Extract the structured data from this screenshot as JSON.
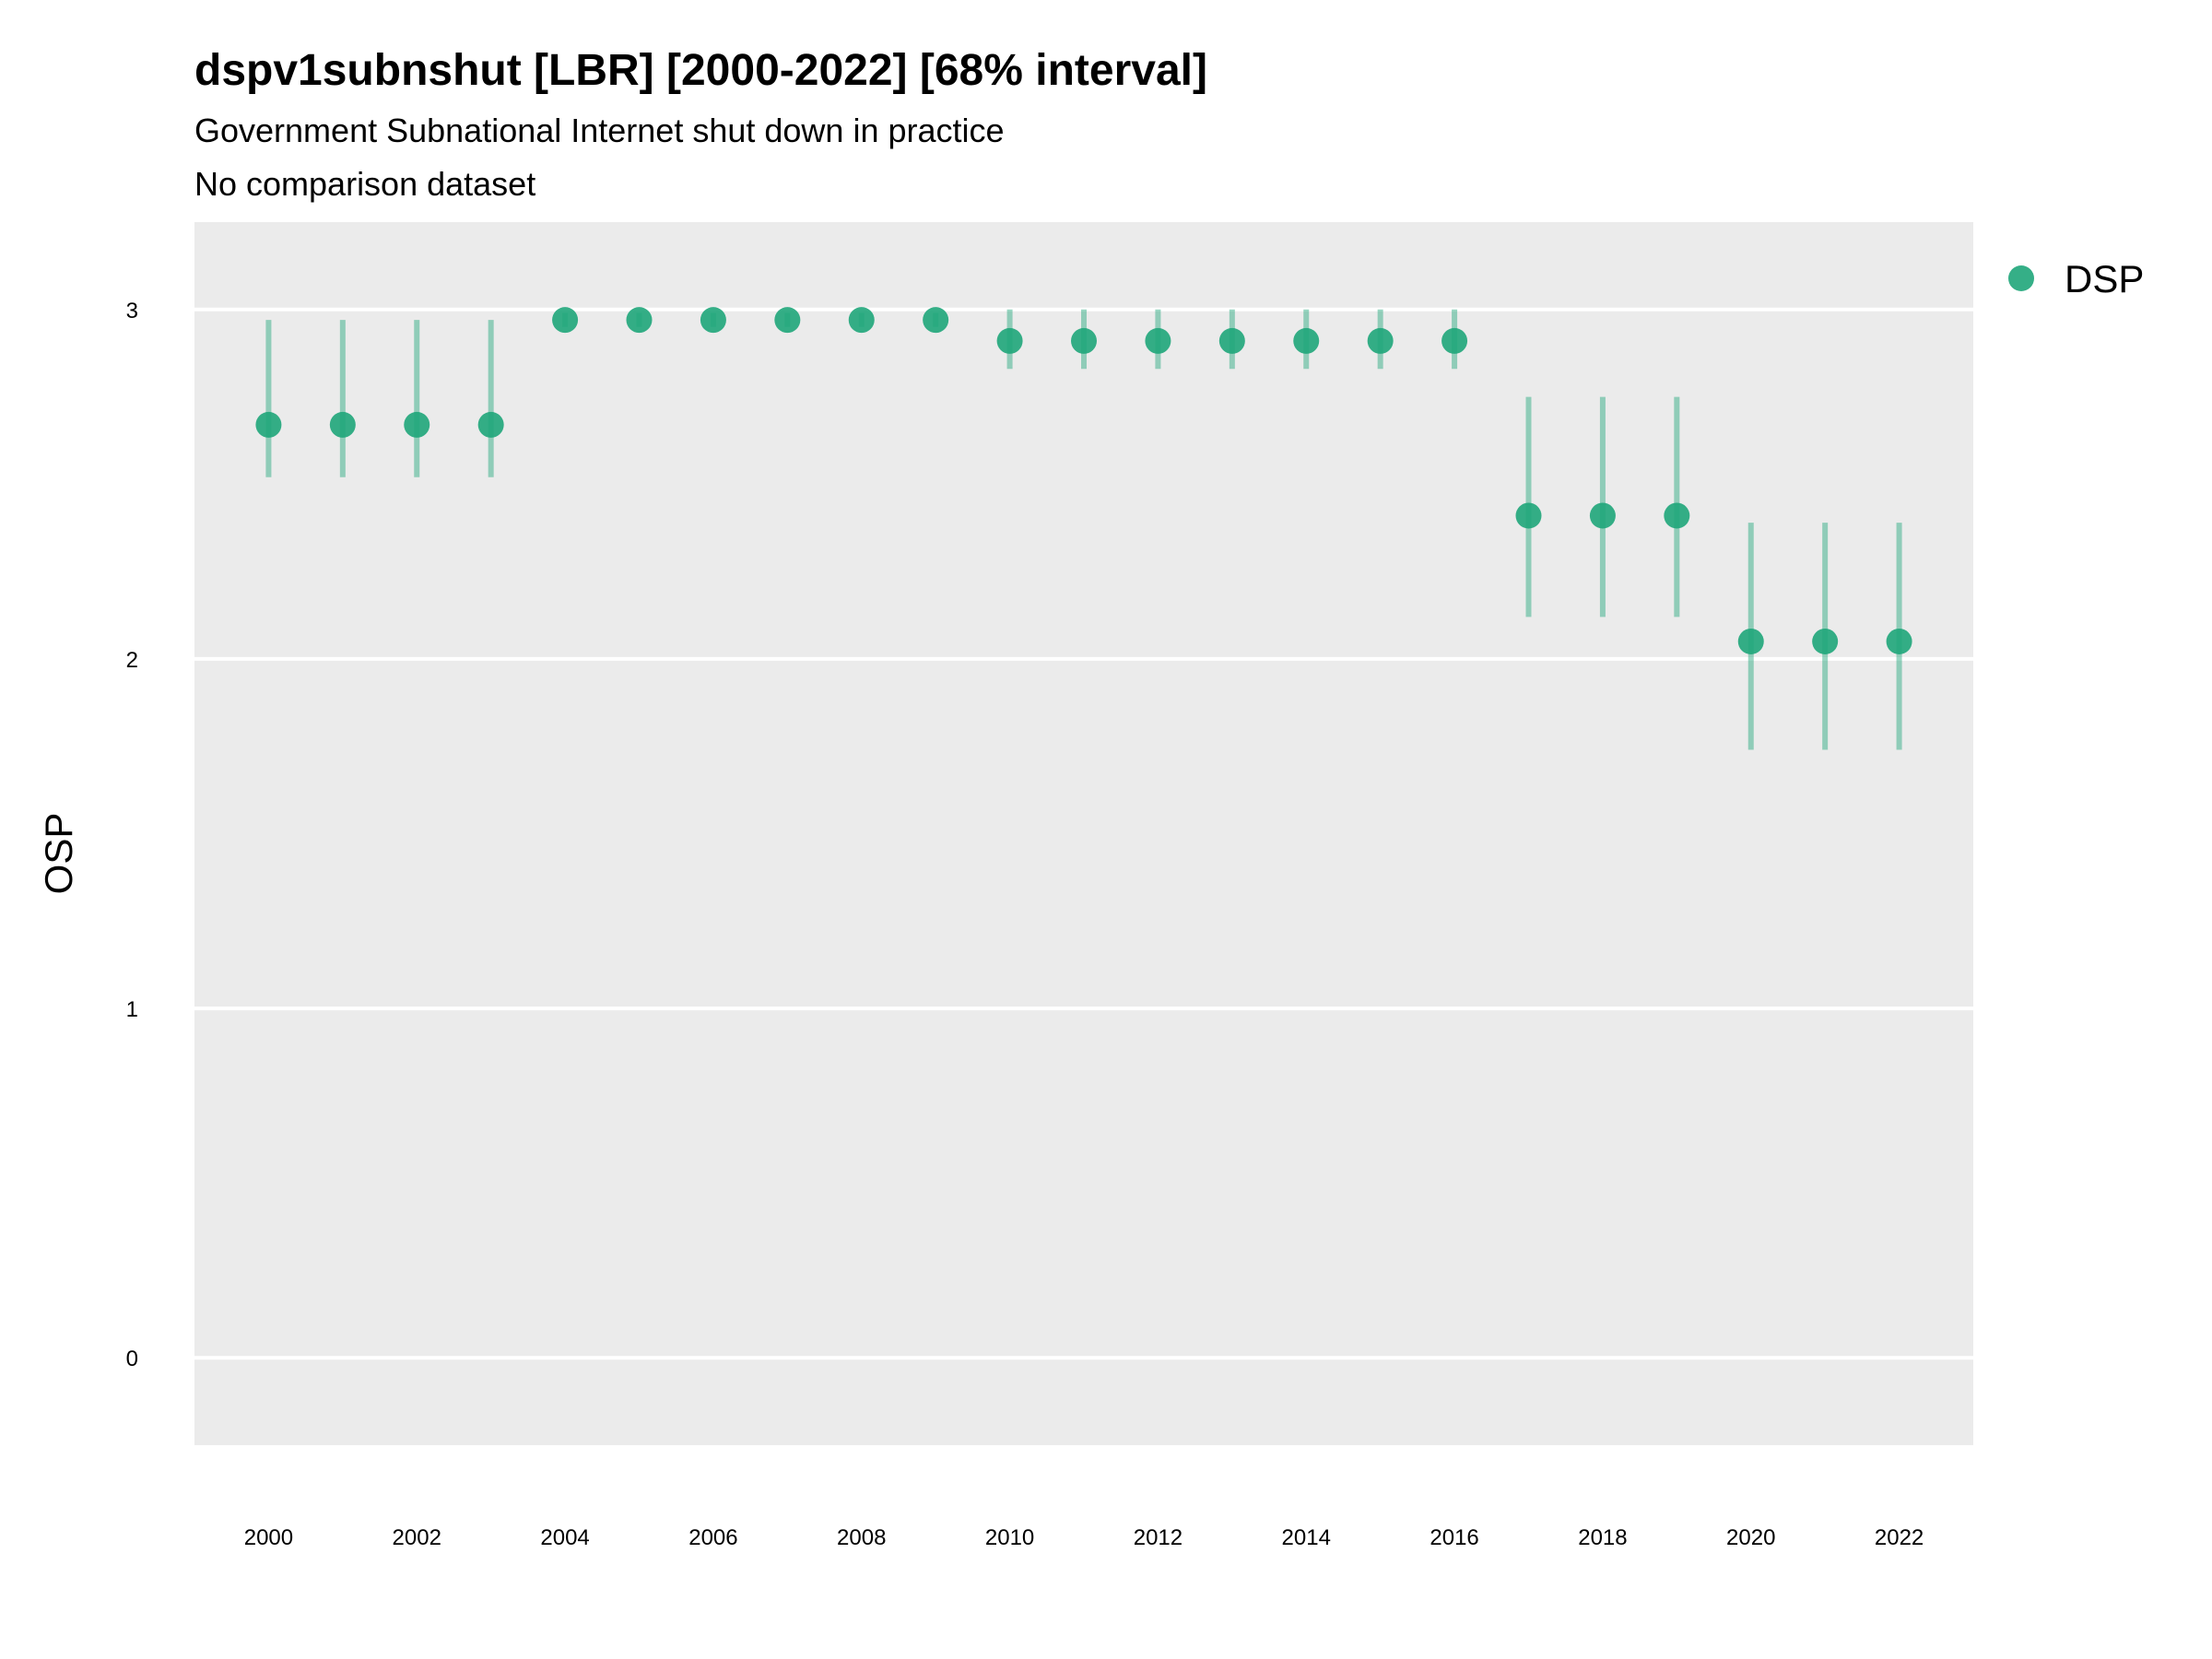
{
  "chart_data": {
    "type": "scatter",
    "title": "dspv1subnshut [LBR] [2000-2022] [68% interval]",
    "subtitle": "Government Subnational Internet shut down in practice",
    "caption": "No comparison dataset",
    "xlabel": "",
    "ylabel": "OSP",
    "x_ticks": [
      "2000",
      "2002",
      "2004",
      "2006",
      "2008",
      "2010",
      "2012",
      "2014",
      "2016",
      "2018",
      "2020",
      "2022"
    ],
    "y_ticks": [
      "0",
      "1",
      "2",
      "3"
    ],
    "xlim": [
      1999,
      2023
    ],
    "ylim": [
      -0.25,
      3.25
    ],
    "grid": true,
    "legend_position": "right",
    "series": [
      {
        "name": "DSP",
        "color": "#1fa67a",
        "points": [
          {
            "x": 2000,
            "y": 2.67,
            "lo": 2.52,
            "hi": 2.97
          },
          {
            "x": 2001,
            "y": 2.67,
            "lo": 2.52,
            "hi": 2.97
          },
          {
            "x": 2002,
            "y": 2.67,
            "lo": 2.52,
            "hi": 2.97
          },
          {
            "x": 2003,
            "y": 2.67,
            "lo": 2.52,
            "hi": 2.97
          },
          {
            "x": 2004,
            "y": 2.97,
            "lo": 2.95,
            "hi": 2.99
          },
          {
            "x": 2005,
            "y": 2.97,
            "lo": 2.95,
            "hi": 2.99
          },
          {
            "x": 2006,
            "y": 2.97,
            "lo": 2.95,
            "hi": 2.99
          },
          {
            "x": 2007,
            "y": 2.97,
            "lo": 2.95,
            "hi": 2.99
          },
          {
            "x": 2008,
            "y": 2.97,
            "lo": 2.95,
            "hi": 2.99
          },
          {
            "x": 2009,
            "y": 2.97,
            "lo": 2.95,
            "hi": 2.99
          },
          {
            "x": 2010,
            "y": 2.91,
            "lo": 2.83,
            "hi": 3.0
          },
          {
            "x": 2011,
            "y": 2.91,
            "lo": 2.83,
            "hi": 3.0
          },
          {
            "x": 2012,
            "y": 2.91,
            "lo": 2.83,
            "hi": 3.0
          },
          {
            "x": 2013,
            "y": 2.91,
            "lo": 2.83,
            "hi": 3.0
          },
          {
            "x": 2014,
            "y": 2.91,
            "lo": 2.83,
            "hi": 3.0
          },
          {
            "x": 2015,
            "y": 2.91,
            "lo": 2.83,
            "hi": 3.0
          },
          {
            "x": 2016,
            "y": 2.91,
            "lo": 2.83,
            "hi": 3.0
          },
          {
            "x": 2017,
            "y": 2.41,
            "lo": 2.12,
            "hi": 2.75
          },
          {
            "x": 2018,
            "y": 2.41,
            "lo": 2.12,
            "hi": 2.75
          },
          {
            "x": 2019,
            "y": 2.41,
            "lo": 2.12,
            "hi": 2.75
          },
          {
            "x": 2020,
            "y": 2.05,
            "lo": 1.74,
            "hi": 2.39
          },
          {
            "x": 2021,
            "y": 2.05,
            "lo": 1.74,
            "hi": 2.39
          },
          {
            "x": 2022,
            "y": 2.05,
            "lo": 1.74,
            "hi": 2.39
          }
        ]
      }
    ]
  }
}
